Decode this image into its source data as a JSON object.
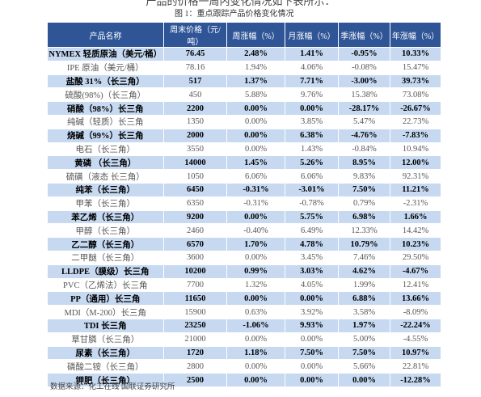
{
  "intro": "产品的价格一周内变化情况如下表所示：",
  "caption": "图 1：重点跟踪产品价格变化情况",
  "table": {
    "header": [
      "产品名称",
      "周末价格（元/吨）",
      "周涨幅（%）",
      "月涨幅（%）",
      "季涨幅（%）",
      "年涨幅（%）"
    ],
    "rows": [
      [
        "NYMEX 轻质原油（美元/桶）",
        "76.45",
        "2.48%",
        "1.41%",
        "-0.95%",
        "10.33%"
      ],
      [
        "IPE 原油（美元/桶）",
        "78.16",
        "1.94%",
        "4.06%",
        "-0.08%",
        "15.47%"
      ],
      [
        "盐酸 31%（长三角）",
        "517",
        "1.37%",
        "7.71%",
        "-3.00%",
        "39.73%"
      ],
      [
        "硫酸(98%)（长三角）",
        "450",
        "5.88%",
        "9.76%",
        "15.38%",
        "73.08%"
      ],
      [
        "硝酸（98%）长三角",
        "2200",
        "0.00%",
        "0.00%",
        "-28.17%",
        "-26.67%"
      ],
      [
        "纯碱（轻质）长三角",
        "1350",
        "0.00%",
        "3.85%",
        "5.47%",
        "22.73%"
      ],
      [
        "烧碱（99%）长三角",
        "2000",
        "0.00%",
        "6.38%",
        "-4.76%",
        "-7.83%"
      ],
      [
        "电石（长三角）",
        "3550",
        "0.00%",
        "1.43%",
        "-0.84%",
        "10.94%"
      ],
      [
        "黄磷 （长三角）",
        "14000",
        "1.45%",
        "5.26%",
        "8.95%",
        "12.00%"
      ],
      [
        "硫磺（液态 长三角）",
        "1050",
        "6.06%",
        "6.06%",
        "9.83%",
        "92.31%"
      ],
      [
        "纯苯（长三角）",
        "6450",
        "-0.31%",
        "-3.01%",
        "7.50%",
        "11.21%"
      ],
      [
        "甲苯（长三角）",
        "6350",
        "-0.31%",
        "-0.78%",
        "0.79%",
        "-2.31%"
      ],
      [
        "苯乙烯（长三角）",
        "9200",
        "0.00%",
        "5.75%",
        "6.98%",
        "1.66%"
      ],
      [
        "甲醇（长三角）",
        "2460",
        "-0.40%",
        "6.49%",
        "12.33%",
        "14.42%"
      ],
      [
        "乙二醇（长三角）",
        "6570",
        "1.70%",
        "4.78%",
        "10.79%",
        "10.23%"
      ],
      [
        "二甲醚（长三角）",
        "3600",
        "0.00%",
        "3.45%",
        "7.46%",
        "29.50%"
      ],
      [
        "LLDPE（膜级）长三角",
        "10200",
        "0.99%",
        "3.03%",
        "4.62%",
        "-4.67%"
      ],
      [
        "PVC（乙烯法）长三角",
        "7700",
        "1.32%",
        "4.05%",
        "1.99%",
        "12.41%"
      ],
      [
        "PP（通用）长三角",
        "11650",
        "0.00%",
        "0.00%",
        "6.88%",
        "13.66%"
      ],
      [
        "MDI（M-200）长三角",
        "15900",
        "0.63%",
        "3.92%",
        "3.58%",
        "-8.09%"
      ],
      [
        "TDI 长三角",
        "23250",
        "-1.06%",
        "9.93%",
        "1.97%",
        "-22.24%"
      ],
      [
        "草甘膦（长三角）",
        "21000",
        "0.00%",
        "0.00%",
        "5.00%",
        "-4.55%"
      ],
      [
        "尿素（长三角）",
        "1720",
        "1.18%",
        "7.50%",
        "7.50%",
        "10.97%"
      ],
      [
        "磷酸二铵（长三角）",
        "2800",
        "0.00%",
        "0.00%",
        "5.66%",
        "22.81%"
      ],
      [
        "钾肥（长三角）",
        "2500",
        "0.00%",
        "0.00%",
        "0.00%",
        "-12.28%"
      ]
    ]
  },
  "source": "数据来源：化工在线 国联证券研究所"
}
